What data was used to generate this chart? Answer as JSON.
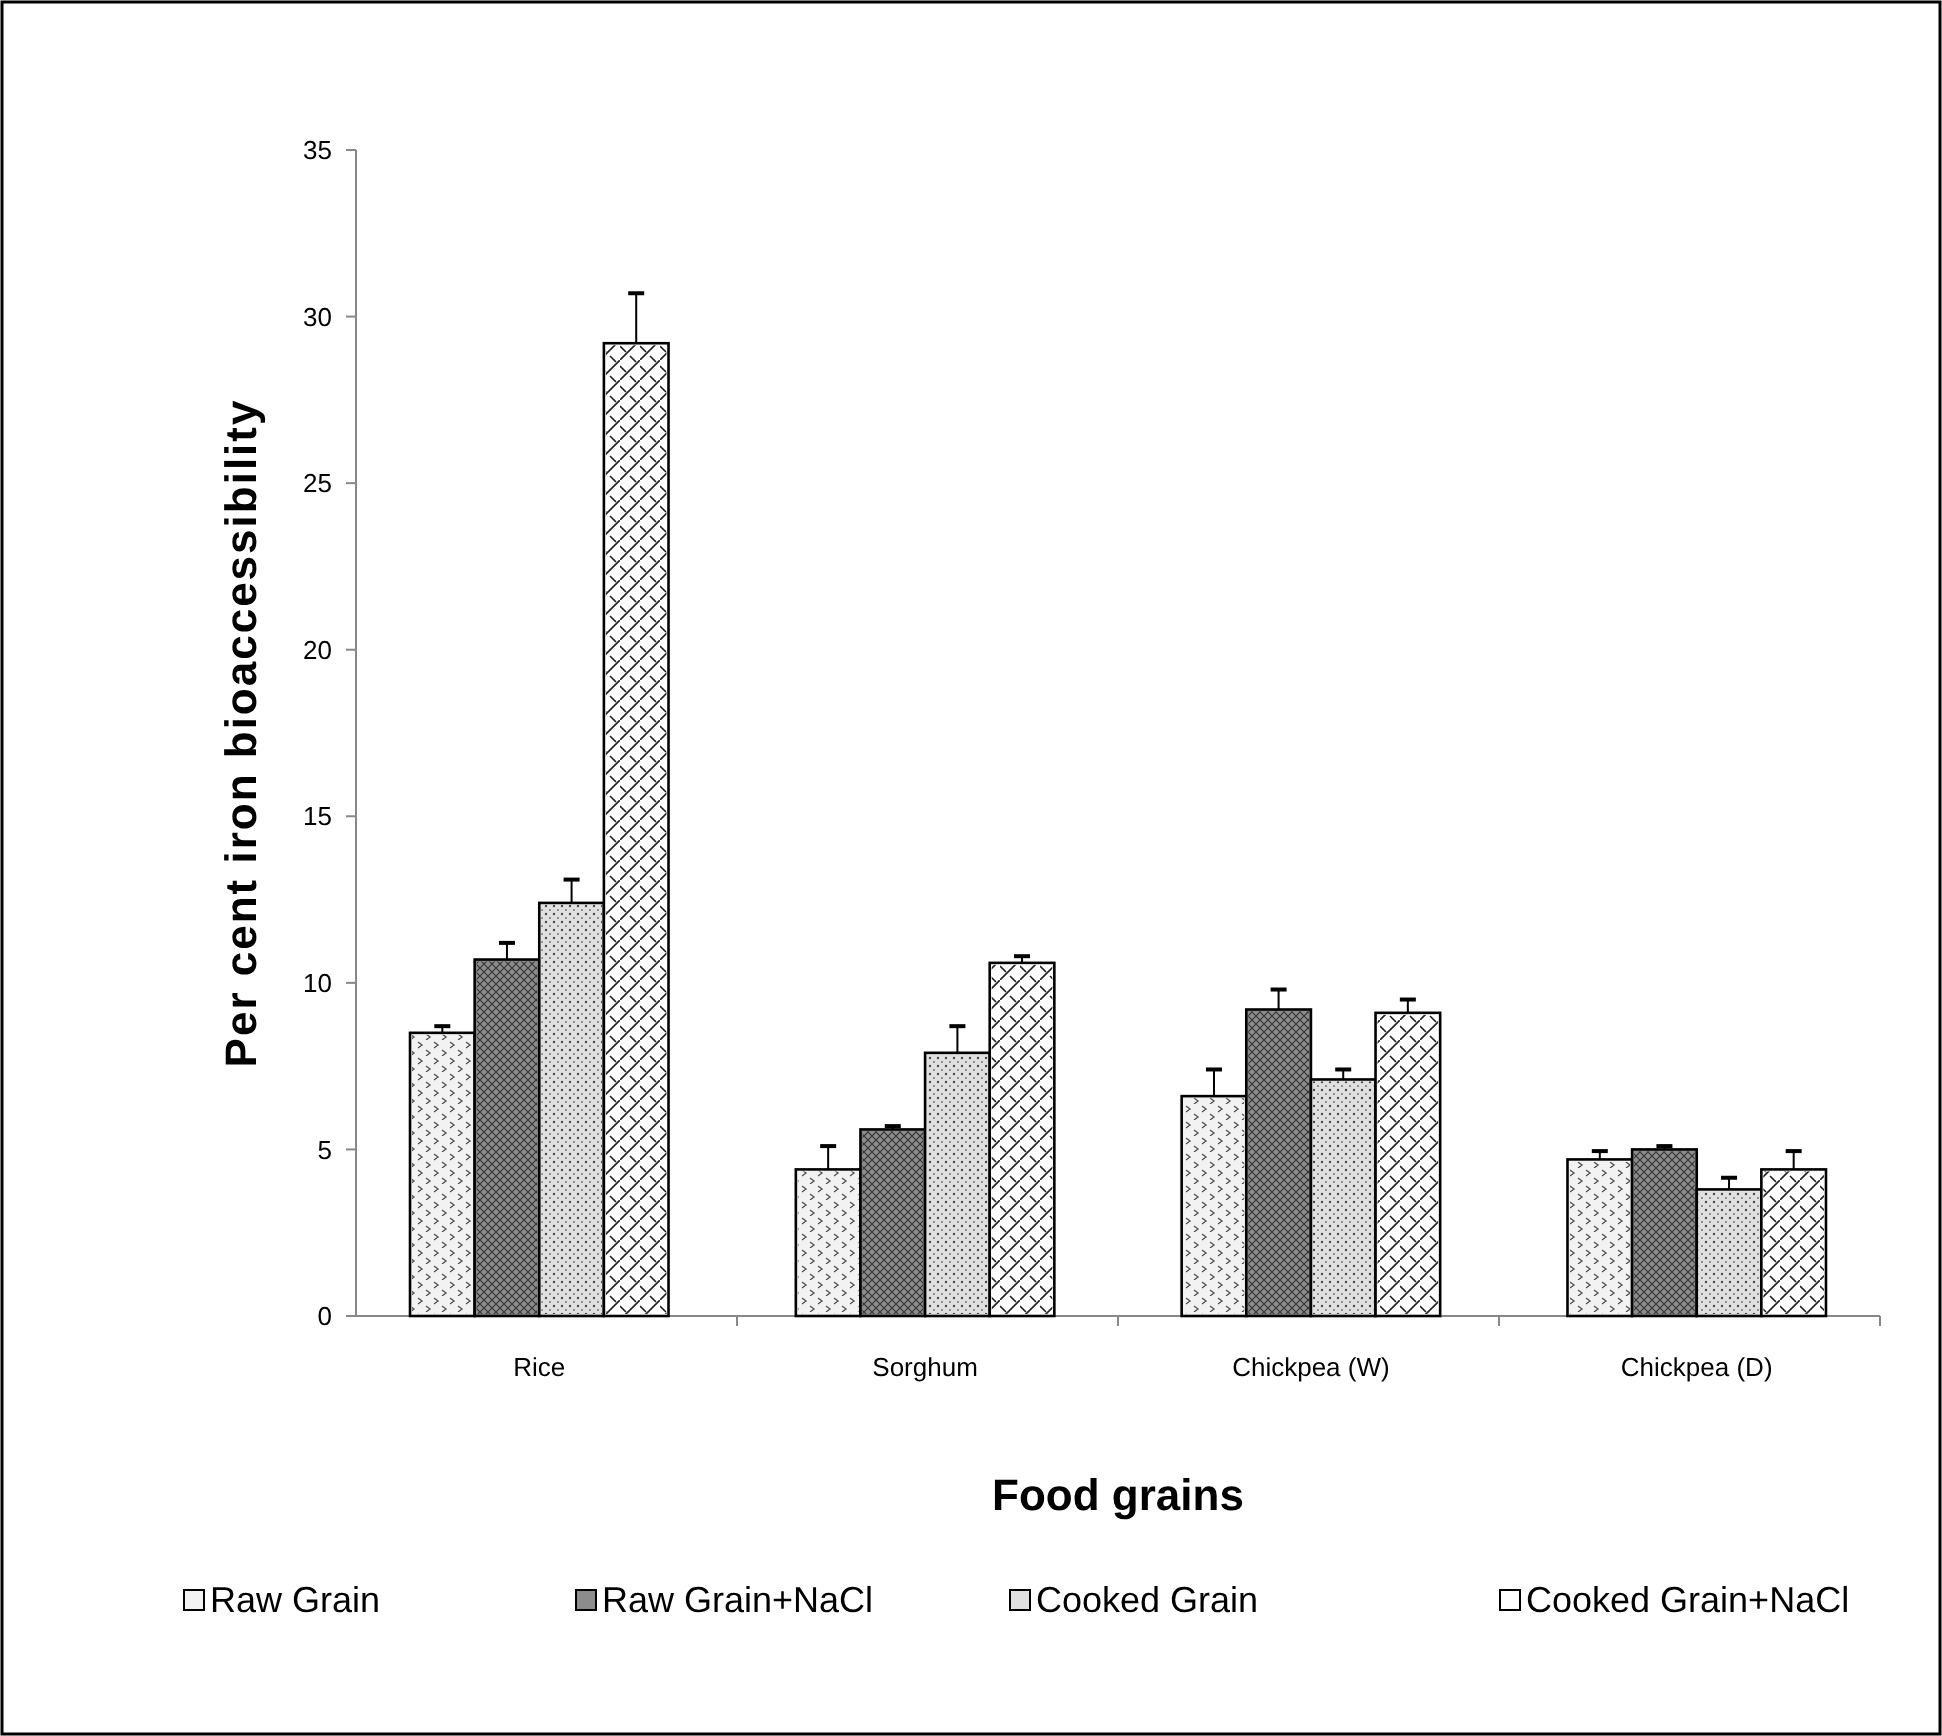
{
  "chart_data": {
    "type": "bar",
    "xlabel": "Food grains",
    "ylabel": "Per  cent iron bioaccessibility",
    "categories": [
      "Rice",
      "Sorghum",
      "Chickpea (W)",
      "Chickpea (D)"
    ],
    "series": [
      {
        "name": "Raw Grain",
        "color": "#f2f2f2",
        "values": [
          8.5,
          4.4,
          6.6,
          4.7
        ],
        "errors": [
          0.2,
          0.7,
          0.8,
          0.25
        ]
      },
      {
        "name": "Raw Grain+NaCl",
        "color": "#8c8c8c",
        "values": [
          10.7,
          5.6,
          9.2,
          5.0
        ],
        "errors": [
          0.5,
          0.1,
          0.6,
          0.1
        ]
      },
      {
        "name": "Cooked Grain",
        "color": "#e0e0e0",
        "values": [
          12.4,
          7.9,
          7.1,
          3.8
        ],
        "errors": [
          0.7,
          0.8,
          0.3,
          0.35
        ]
      },
      {
        "name": "Cooked Grain+NaCl",
        "color": "#ffffff",
        "values": [
          29.2,
          10.6,
          9.1,
          4.4
        ],
        "errors": [
          1.5,
          0.2,
          0.4,
          0.55
        ]
      }
    ],
    "ylim": [
      0,
      35
    ],
    "yticks": [
      0,
      5,
      10,
      15,
      20,
      25,
      30,
      35
    ],
    "grid": false,
    "legend": "bottom"
  }
}
